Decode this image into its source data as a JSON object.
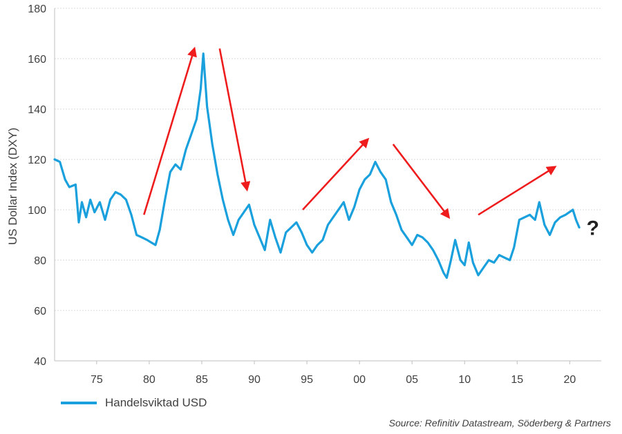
{
  "chart_data": {
    "type": "line",
    "ylabel": "US Dollar Index (DXY)",
    "ylim": [
      40,
      180
    ],
    "xlim": [
      1971,
      2023
    ],
    "yticks": [
      40,
      60,
      80,
      100,
      120,
      140,
      160,
      180
    ],
    "xticks": [
      {
        "value": 1975,
        "label": "75"
      },
      {
        "value": 1980,
        "label": "80"
      },
      {
        "value": 1985,
        "label": "85"
      },
      {
        "value": 1990,
        "label": "90"
      },
      {
        "value": 1995,
        "label": "95"
      },
      {
        "value": 2000,
        "label": "00"
      },
      {
        "value": 2005,
        "label": "05"
      },
      {
        "value": 2010,
        "label": "10"
      },
      {
        "value": 2015,
        "label": "15"
      },
      {
        "value": 2020,
        "label": "20"
      }
    ],
    "grid": "horizontal",
    "series": [
      {
        "name": "Handelsviktad USD",
        "color": "#1aa0dc",
        "points": [
          [
            1971.0,
            120
          ],
          [
            1971.5,
            119
          ],
          [
            1972.0,
            112
          ],
          [
            1972.4,
            109
          ],
          [
            1973.0,
            110
          ],
          [
            1973.3,
            95
          ],
          [
            1973.6,
            103
          ],
          [
            1974.0,
            97
          ],
          [
            1974.4,
            104
          ],
          [
            1974.8,
            99
          ],
          [
            1975.3,
            103
          ],
          [
            1975.8,
            96
          ],
          [
            1976.3,
            104
          ],
          [
            1976.8,
            107
          ],
          [
            1977.3,
            106
          ],
          [
            1977.8,
            104
          ],
          [
            1978.3,
            98
          ],
          [
            1978.8,
            90
          ],
          [
            1979.3,
            89
          ],
          [
            1979.8,
            88
          ],
          [
            1980.2,
            87
          ],
          [
            1980.6,
            86
          ],
          [
            1981.0,
            92
          ],
          [
            1981.5,
            104
          ],
          [
            1982.0,
            115
          ],
          [
            1982.5,
            118
          ],
          [
            1983.0,
            116
          ],
          [
            1983.5,
            124
          ],
          [
            1984.0,
            130
          ],
          [
            1984.5,
            136
          ],
          [
            1984.9,
            148
          ],
          [
            1985.15,
            162
          ],
          [
            1985.5,
            141
          ],
          [
            1986.0,
            126
          ],
          [
            1986.5,
            114
          ],
          [
            1987.0,
            104
          ],
          [
            1987.5,
            96
          ],
          [
            1988.0,
            90
          ],
          [
            1988.5,
            96
          ],
          [
            1989.0,
            99
          ],
          [
            1989.5,
            102
          ],
          [
            1990.0,
            94
          ],
          [
            1990.5,
            89
          ],
          [
            1991.0,
            84
          ],
          [
            1991.5,
            96
          ],
          [
            1992.0,
            89
          ],
          [
            1992.5,
            83
          ],
          [
            1993.0,
            91
          ],
          [
            1993.5,
            93
          ],
          [
            1994.0,
            95
          ],
          [
            1994.5,
            91
          ],
          [
            1995.0,
            86
          ],
          [
            1995.5,
            83
          ],
          [
            1996.0,
            86
          ],
          [
            1996.5,
            88
          ],
          [
            1997.0,
            94
          ],
          [
            1997.5,
            97
          ],
          [
            1998.0,
            100
          ],
          [
            1998.5,
            103
          ],
          [
            1999.0,
            96
          ],
          [
            1999.5,
            101
          ],
          [
            2000.0,
            108
          ],
          [
            2000.5,
            112
          ],
          [
            2001.0,
            114
          ],
          [
            2001.5,
            119
          ],
          [
            2002.0,
            115
          ],
          [
            2002.5,
            112
          ],
          [
            2003.0,
            103
          ],
          [
            2003.5,
            98
          ],
          [
            2004.0,
            92
          ],
          [
            2004.5,
            89
          ],
          [
            2005.0,
            86
          ],
          [
            2005.5,
            90
          ],
          [
            2006.0,
            89
          ],
          [
            2006.5,
            87
          ],
          [
            2007.0,
            84
          ],
          [
            2007.5,
            80
          ],
          [
            2008.0,
            75
          ],
          [
            2008.3,
            73
          ],
          [
            2008.7,
            80
          ],
          [
            2009.1,
            88
          ],
          [
            2009.6,
            80
          ],
          [
            2010.0,
            78
          ],
          [
            2010.4,
            87
          ],
          [
            2010.8,
            79
          ],
          [
            2011.3,
            74
          ],
          [
            2011.8,
            77
          ],
          [
            2012.3,
            80
          ],
          [
            2012.8,
            79
          ],
          [
            2013.3,
            82
          ],
          [
            2013.8,
            81
          ],
          [
            2014.3,
            80
          ],
          [
            2014.7,
            85
          ],
          [
            2015.2,
            96
          ],
          [
            2015.7,
            97
          ],
          [
            2016.2,
            98
          ],
          [
            2016.7,
            96
          ],
          [
            2017.1,
            103
          ],
          [
            2017.6,
            94
          ],
          [
            2018.1,
            90
          ],
          [
            2018.6,
            95
          ],
          [
            2019.1,
            97
          ],
          [
            2019.6,
            98
          ],
          [
            2020.3,
            100
          ],
          [
            2020.6,
            96
          ],
          [
            2020.9,
            93
          ]
        ]
      }
    ],
    "annotations": [
      {
        "type": "arrow",
        "from": [
          1979.5,
          98
        ],
        "to": [
          1984.3,
          164
        ]
      },
      {
        "type": "arrow",
        "from": [
          1986.7,
          164
        ],
        "to": [
          1989.3,
          108
        ]
      },
      {
        "type": "arrow",
        "from": [
          1994.6,
          100
        ],
        "to": [
          2000.8,
          128
        ]
      },
      {
        "type": "arrow",
        "from": [
          2003.2,
          126
        ],
        "to": [
          2008.5,
          97
        ]
      },
      {
        "type": "arrow",
        "from": [
          2011.3,
          98
        ],
        "to": [
          2018.6,
          117
        ]
      },
      {
        "type": "text",
        "text": "?",
        "x": 2022.2,
        "y": 90
      }
    ],
    "legend_position": "bottom-left",
    "arrow_color": "#ee1c1c"
  },
  "legend": {
    "label": "Handelsviktad USD"
  },
  "source": "Source: Refinitiv Datastream, Söderberg & Partners"
}
